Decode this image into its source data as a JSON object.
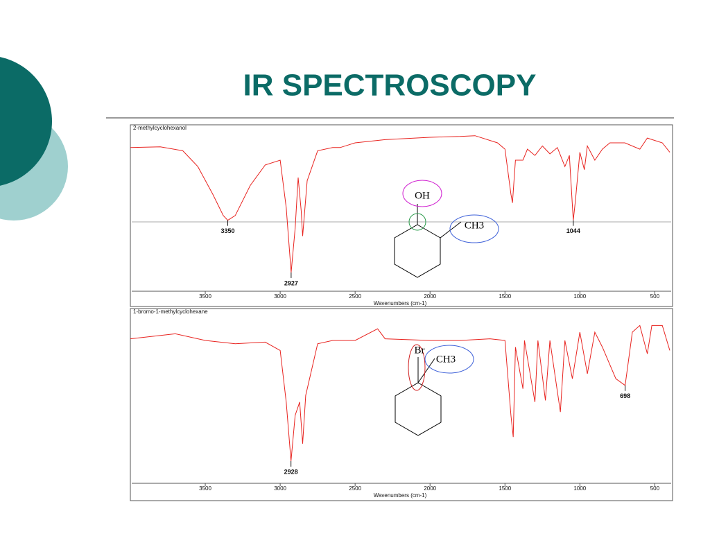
{
  "title": "IR SPECTROSCOPY",
  "chart_data": [
    {
      "type": "line",
      "title": "2-methylcyclohexanol",
      "x_label": "Wavenumbers (cm-1)",
      "xlim": [
        4000,
        400
      ],
      "xticks": [
        3500,
        3000,
        2500,
        2000,
        1500,
        1000,
        500
      ],
      "ylim": [
        0,
        100
      ],
      "x": [
        4000,
        3800,
        3650,
        3550,
        3450,
        3380,
        3350,
        3300,
        3200,
        3100,
        3000,
        2960,
        2927,
        2900,
        2880,
        2860,
        2850,
        2820,
        2750,
        2650,
        2600,
        2500,
        2300,
        2000,
        1800,
        1700,
        1550,
        1500,
        1460,
        1450,
        1430,
        1380,
        1350,
        1300,
        1250,
        1200,
        1150,
        1100,
        1070,
        1044,
        1030,
        1000,
        970,
        950,
        900,
        850,
        800,
        700,
        600,
        550,
        450,
        400
      ],
      "series": [
        {
          "color": "#e8231f",
          "values": [
            90,
            90.5,
            88,
            78,
            60.5,
            47,
            44,
            47,
            66,
            79,
            82,
            52,
            11,
            39,
            71,
            50,
            34,
            69,
            88,
            90,
            90,
            93,
            95,
            96.5,
            97,
            97.5,
            93,
            89,
            60.5,
            55,
            82,
            82,
            89,
            85,
            91,
            86,
            90,
            78,
            85,
            44,
            56,
            87,
            76,
            91,
            82,
            89,
            93,
            93,
            89,
            96,
            93,
            87
          ]
        }
      ],
      "annotations": [
        {
          "text": "3350",
          "x": 3350,
          "y": 44
        },
        {
          "text": "2927",
          "x": 2927,
          "y": 11
        },
        {
          "text": "1044",
          "x": 1044,
          "y": 44
        }
      ],
      "molecule": [
        "OH",
        "CH3"
      ]
    },
    {
      "type": "line",
      "title": "1-bromo-1-methylcyclohexane",
      "x_label": "Wavenumbers (cm-1)",
      "xlim": [
        4000,
        400
      ],
      "xticks": [
        3500,
        3000,
        2500,
        2000,
        1500,
        1000,
        500
      ],
      "ylim": [
        0,
        100
      ],
      "x": [
        4000,
        3700,
        3500,
        3300,
        3100,
        3000,
        2960,
        2928,
        2900,
        2870,
        2850,
        2830,
        2750,
        2650,
        2500,
        2350,
        2300,
        2000,
        1800,
        1600,
        1500,
        1460,
        1445,
        1430,
        1380,
        1370,
        1300,
        1280,
        1230,
        1200,
        1130,
        1100,
        1050,
        1000,
        950,
        900,
        850,
        760,
        698,
        650,
        600,
        550,
        520,
        450,
        400
      ],
      "series": [
        {
          "color": "#e8231f",
          "values": [
            86,
            89,
            85,
            83,
            84,
            79,
            48,
            12.5,
            40,
            48,
            23,
            52,
            83,
            85,
            85,
            92,
            86,
            85,
            85,
            86,
            85,
            40,
            27,
            81,
            56,
            85,
            48,
            85,
            49,
            85,
            42,
            85,
            62,
            90,
            65,
            90,
            81,
            62,
            58,
            90,
            94,
            77,
            94,
            94,
            79
          ]
        }
      ],
      "annotations": [
        {
          "text": "2928",
          "x": 2928,
          "y": 12.5
        },
        {
          "text": "698",
          "x": 698,
          "y": 58
        }
      ],
      "molecule": [
        "Br",
        "CH3"
      ]
    }
  ]
}
